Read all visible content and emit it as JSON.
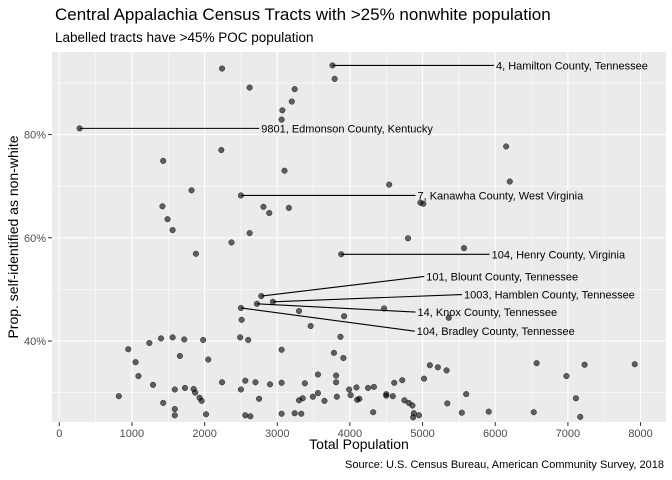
{
  "chart_data": {
    "type": "scatter",
    "title": "Central Appalachia Census Tracts with >25% nonwhite population",
    "subtitle": "Labelled tracts have >45% POC population",
    "caption": "Source: U.S. Census Bureau, American Community Survey, 2018",
    "xlabel": "Total Population",
    "ylabel": "Prop. self-identified as non-white",
    "xlim": [
      -100,
      8350
    ],
    "ylim": [
      0.243,
      0.96
    ],
    "x_ticks": [
      {
        "value": 0,
        "label": "0"
      },
      {
        "value": 1000,
        "label": "1000"
      },
      {
        "value": 2000,
        "label": "2000"
      },
      {
        "value": 3000,
        "label": "3000"
      },
      {
        "value": 4000,
        "label": "4000"
      },
      {
        "value": 5000,
        "label": "5000"
      },
      {
        "value": 6000,
        "label": "6000"
      },
      {
        "value": 7000,
        "label": "7000"
      },
      {
        "value": 8000,
        "label": "8000"
      }
    ],
    "y_ticks": [
      {
        "value": 0.4,
        "label": "40%"
      },
      {
        "value": 0.6,
        "label": "60%"
      },
      {
        "value": 0.8,
        "label": "80%"
      }
    ],
    "grid": true,
    "point_color": "#000000",
    "panel_color": "#ebebeb",
    "grid_color": "#ffffff",
    "points": [
      [
        3760,
        0.934
      ],
      [
        2240,
        0.928
      ],
      [
        3790,
        0.908
      ],
      [
        2620,
        0.891
      ],
      [
        3240,
        0.888
      ],
      [
        3200,
        0.864
      ],
      [
        3070,
        0.847
      ],
      [
        3060,
        0.829
      ],
      [
        280,
        0.812
      ],
      [
        2230,
        0.77
      ],
      [
        6150,
        0.777
      ],
      [
        6200,
        0.709
      ],
      [
        3100,
        0.73
      ],
      [
        1430,
        0.749
      ],
      [
        4540,
        0.703
      ],
      [
        2500,
        0.682
      ],
      [
        1820,
        0.692
      ],
      [
        4970,
        0.668
      ],
      [
        5010,
        0.666
      ],
      [
        1420,
        0.661
      ],
      [
        2810,
        0.66
      ],
      [
        3160,
        0.658
      ],
      [
        2890,
        0.648
      ],
      [
        1490,
        0.636
      ],
      [
        1560,
        0.615
      ],
      [
        2620,
        0.609
      ],
      [
        4800,
        0.599
      ],
      [
        2370,
        0.591
      ],
      [
        5570,
        0.58
      ],
      [
        1880,
        0.569
      ],
      [
        3880,
        0.568
      ],
      [
        2780,
        0.487
      ],
      [
        2940,
        0.476
      ],
      [
        2720,
        0.472
      ],
      [
        2500,
        0.464
      ],
      [
        4470,
        0.463
      ],
      [
        3300,
        0.458
      ],
      [
        3920,
        0.448
      ],
      [
        5360,
        0.445
      ],
      [
        2510,
        0.441
      ],
      [
        3460,
        0.429
      ],
      [
        2490,
        0.407
      ],
      [
        2600,
        0.402
      ],
      [
        3870,
        0.408
      ],
      [
        1980,
        0.402
      ],
      [
        1400,
        0.405
      ],
      [
        1560,
        0.407
      ],
      [
        1720,
        0.403
      ],
      [
        1240,
        0.396
      ],
      [
        3060,
        0.383
      ],
      [
        3780,
        0.377
      ],
      [
        950,
        0.384
      ],
      [
        1660,
        0.371
      ],
      [
        2050,
        0.364
      ],
      [
        1050,
        0.359
      ],
      [
        3910,
        0.367
      ],
      [
        5100,
        0.353
      ],
      [
        6570,
        0.357
      ],
      [
        7230,
        0.354
      ],
      [
        7920,
        0.355
      ],
      [
        5210,
        0.349
      ],
      [
        5330,
        0.343
      ],
      [
        3560,
        0.335
      ],
      [
        3810,
        0.333
      ],
      [
        1090,
        0.332
      ],
      [
        5020,
        0.327
      ],
      [
        6980,
        0.332
      ],
      [
        4720,
        0.324
      ],
      [
        2560,
        0.323
      ],
      [
        2240,
        0.32
      ],
      [
        2700,
        0.32
      ],
      [
        3060,
        0.319
      ],
      [
        3810,
        0.32
      ],
      [
        3380,
        0.318
      ],
      [
        1290,
        0.315
      ],
      [
        4610,
        0.319
      ],
      [
        2900,
        0.316
      ],
      [
        4090,
        0.31
      ],
      [
        4250,
        0.309
      ],
      [
        1730,
        0.309
      ],
      [
        4330,
        0.311
      ],
      [
        1590,
        0.306
      ],
      [
        1850,
        0.307
      ],
      [
        2500,
        0.306
      ],
      [
        3990,
        0.306
      ],
      [
        1870,
        0.3
      ],
      [
        4500,
        0.297
      ],
      [
        5600,
        0.297
      ],
      [
        820,
        0.293
      ],
      [
        3560,
        0.299
      ],
      [
        4010,
        0.295
      ],
      [
        4500,
        0.294
      ],
      [
        3490,
        0.292
      ],
      [
        4590,
        0.293
      ],
      [
        4130,
        0.288
      ],
      [
        3820,
        0.292
      ],
      [
        4100,
        0.286
      ],
      [
        2750,
        0.288
      ],
      [
        3650,
        0.284
      ],
      [
        7110,
        0.289
      ],
      [
        1430,
        0.28
      ],
      [
        4750,
        0.285
      ],
      [
        1960,
        0.284
      ],
      [
        3300,
        0.285
      ],
      [
        3350,
        0.289
      ],
      [
        4810,
        0.28
      ],
      [
        1930,
        0.29
      ],
      [
        4860,
        0.275
      ],
      [
        5340,
        0.279
      ],
      [
        1590,
        0.268
      ],
      [
        5910,
        0.263
      ],
      [
        6530,
        0.262
      ],
      [
        3240,
        0.26
      ],
      [
        4320,
        0.262
      ],
      [
        4880,
        0.26
      ],
      [
        1590,
        0.256
      ],
      [
        2020,
        0.258
      ],
      [
        3060,
        0.259
      ],
      [
        5540,
        0.261
      ],
      [
        3330,
        0.259
      ],
      [
        4950,
        0.256
      ],
      [
        2630,
        0.254
      ],
      [
        2560,
        0.256
      ],
      [
        4870,
        0.252
      ],
      [
        7170,
        0.253
      ]
    ],
    "annotations": [
      {
        "label": "4, Hamilton County, Tennessee",
        "x": 3760,
        "y": 0.934,
        "label_x": 6010,
        "label_y": 0.934
      },
      {
        "label": "9801, Edmonson County, Kentucky",
        "x": 280,
        "y": 0.812,
        "label_x": 2780,
        "label_y": 0.812
      },
      {
        "label": "7, Kanawha County, West Virginia",
        "x": 2500,
        "y": 0.682,
        "label_x": 4930,
        "label_y": 0.682
      },
      {
        "label": "104, Henry County, Virginia",
        "x": 3880,
        "y": 0.568,
        "label_x": 5950,
        "label_y": 0.568
      },
      {
        "label": "101, Blount County, Tennessee",
        "x": 2780,
        "y": 0.487,
        "label_x": 5050,
        "label_y": 0.525
      },
      {
        "label": "1003, Hamblen County, Tennessee",
        "x": 2940,
        "y": 0.476,
        "label_x": 5570,
        "label_y": 0.49
      },
      {
        "label": "14, Knox County, Tennessee",
        "x": 2720,
        "y": 0.472,
        "label_x": 4930,
        "label_y": 0.456
      },
      {
        "label": "104, Bradley County, Tennessee",
        "x": 2500,
        "y": 0.464,
        "label_x": 4920,
        "label_y": 0.419
      }
    ]
  }
}
